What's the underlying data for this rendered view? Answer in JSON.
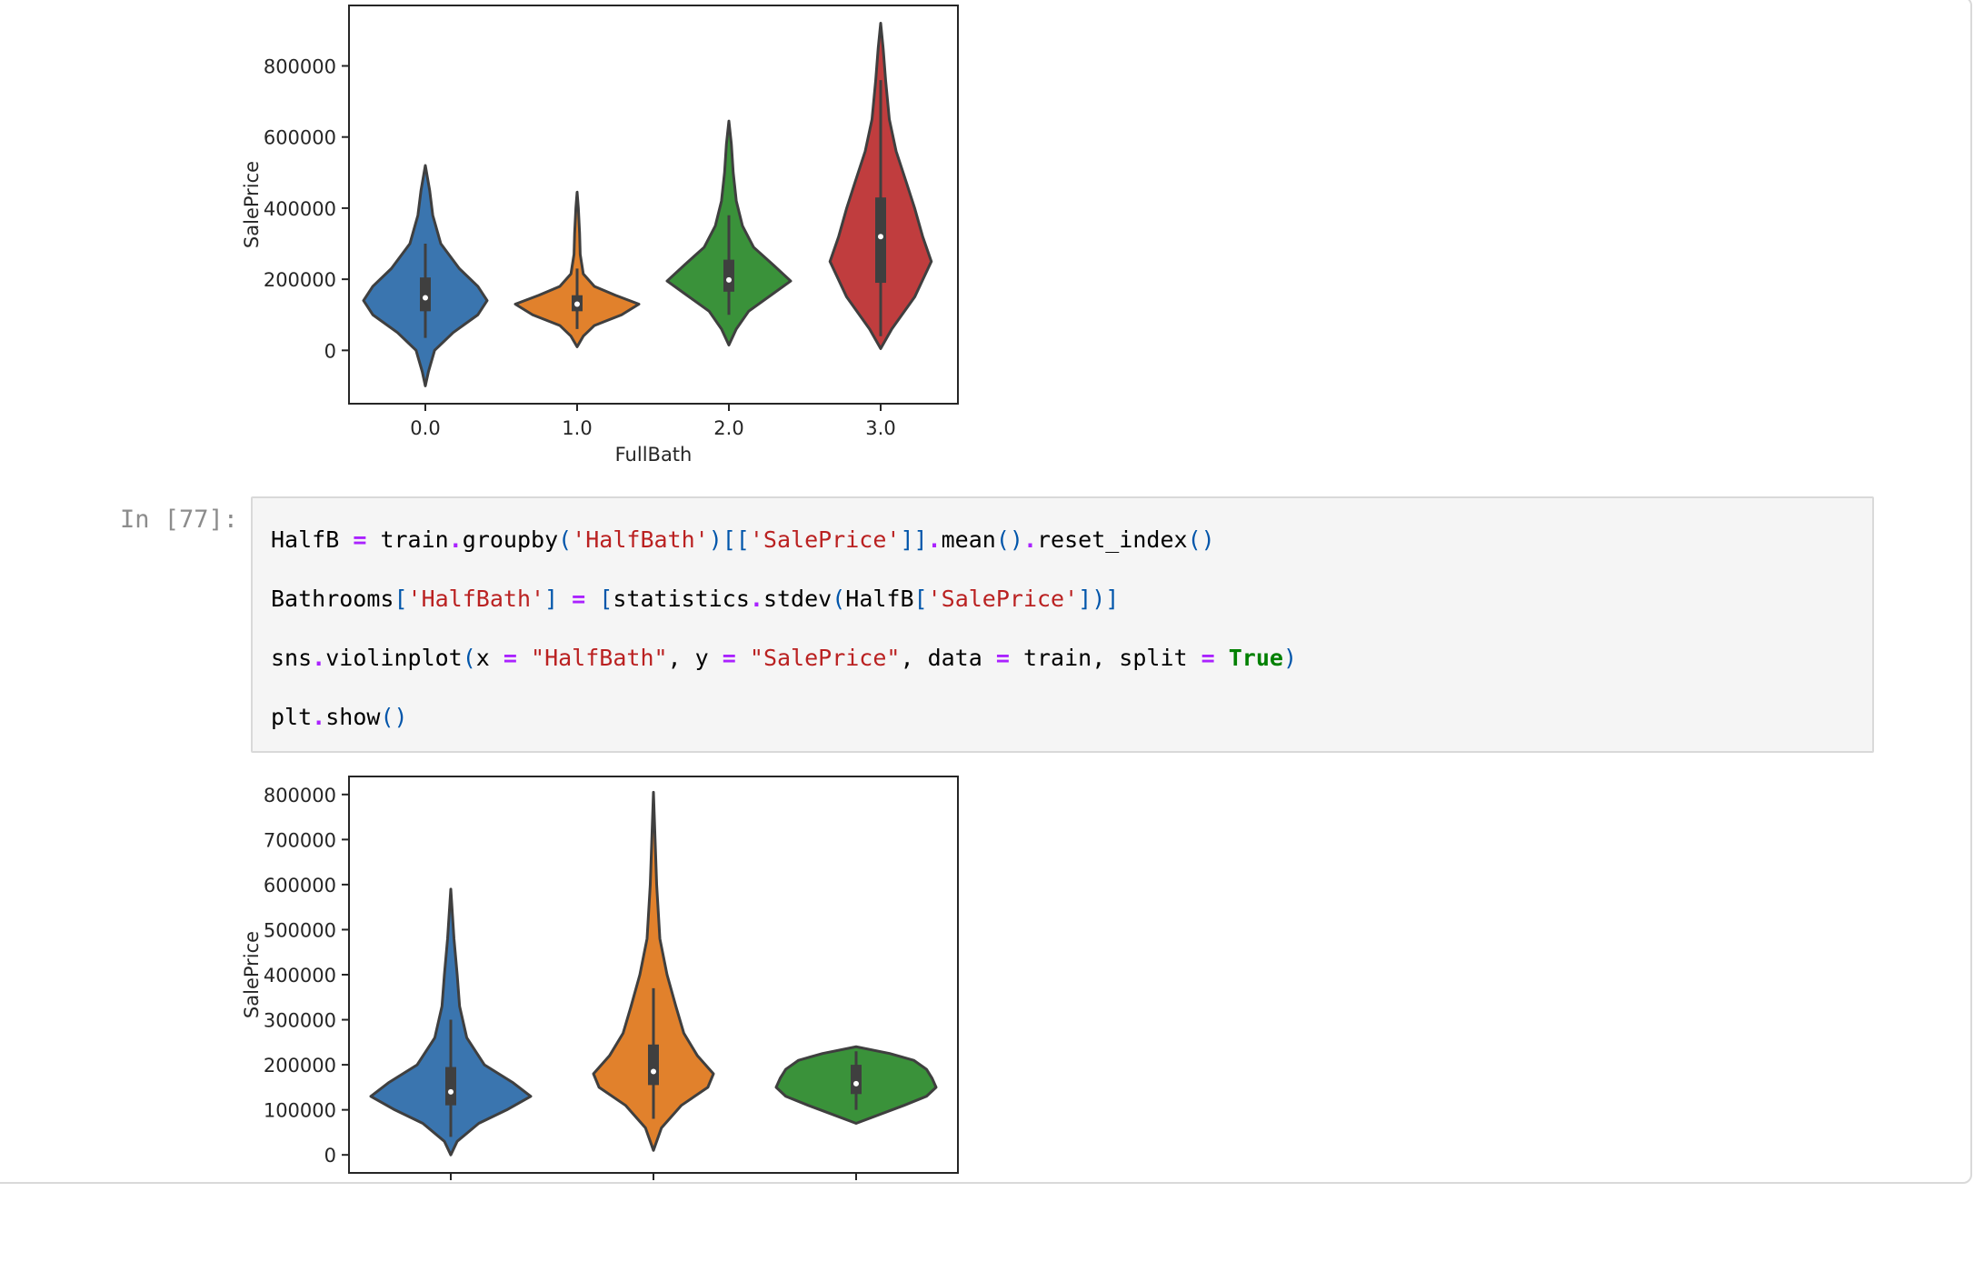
{
  "notebook": {
    "cell_prompt": "In [77]:",
    "code_lines": [
      [
        {
          "t": "HalfB",
          "c": "var"
        },
        {
          "t": " ",
          "c": "p"
        },
        {
          "t": "=",
          "c": "op"
        },
        {
          "t": " train",
          "c": "var"
        },
        {
          "t": ".",
          "c": "op"
        },
        {
          "t": "groupby",
          "c": "var"
        },
        {
          "t": "(",
          "c": "br"
        },
        {
          "t": "'HalfBath'",
          "c": "str"
        },
        {
          "t": ")[[",
          "c": "br"
        },
        {
          "t": "'SalePrice'",
          "c": "str"
        },
        {
          "t": "]]",
          "c": "br"
        },
        {
          "t": ".",
          "c": "op"
        },
        {
          "t": "mean",
          "c": "var"
        },
        {
          "t": "()",
          "c": "br"
        },
        {
          "t": ".",
          "c": "op"
        },
        {
          "t": "reset_index",
          "c": "var"
        },
        {
          "t": "()",
          "c": "br"
        }
      ],
      [
        {
          "t": "Bathrooms",
          "c": "var"
        },
        {
          "t": "[",
          "c": "br"
        },
        {
          "t": "'HalfBath'",
          "c": "str"
        },
        {
          "t": "]",
          "c": "br"
        },
        {
          "t": " ",
          "c": "p"
        },
        {
          "t": "=",
          "c": "op"
        },
        {
          "t": " ",
          "c": "p"
        },
        {
          "t": "[",
          "c": "br"
        },
        {
          "t": "statistics",
          "c": "var"
        },
        {
          "t": ".",
          "c": "op"
        },
        {
          "t": "stdev",
          "c": "var"
        },
        {
          "t": "(",
          "c": "br"
        },
        {
          "t": "HalfB",
          "c": "var"
        },
        {
          "t": "[",
          "c": "br"
        },
        {
          "t": "'SalePrice'",
          "c": "str"
        },
        {
          "t": "])]",
          "c": "br"
        }
      ],
      [
        {
          "t": "sns",
          "c": "var"
        },
        {
          "t": ".",
          "c": "op"
        },
        {
          "t": "violinplot",
          "c": "var"
        },
        {
          "t": "(",
          "c": "br"
        },
        {
          "t": "x ",
          "c": "var"
        },
        {
          "t": "=",
          "c": "op"
        },
        {
          "t": " ",
          "c": "p"
        },
        {
          "t": "\"HalfBath\"",
          "c": "str"
        },
        {
          "t": ", y ",
          "c": "var"
        },
        {
          "t": "=",
          "c": "op"
        },
        {
          "t": " ",
          "c": "p"
        },
        {
          "t": "\"SalePrice\"",
          "c": "str"
        },
        {
          "t": ", data ",
          "c": "var"
        },
        {
          "t": "=",
          "c": "op"
        },
        {
          "t": " train, split ",
          "c": "var"
        },
        {
          "t": "=",
          "c": "op"
        },
        {
          "t": " ",
          "c": "p"
        },
        {
          "t": "True",
          "c": "kw"
        },
        {
          "t": ")",
          "c": "br"
        }
      ],
      [
        {
          "t": "plt",
          "c": "var"
        },
        {
          "t": ".",
          "c": "op"
        },
        {
          "t": "show",
          "c": "var"
        },
        {
          "t": "()",
          "c": "br"
        }
      ]
    ]
  },
  "chart_data": [
    {
      "type": "violin",
      "xlabel": "FullBath",
      "ylabel": "SalePrice",
      "categories": [
        "0.0",
        "1.0",
        "2.0",
        "3.0"
      ],
      "colors": [
        "#3a75af",
        "#e1812c",
        "#3a923a",
        "#c03d3e"
      ],
      "yticks": [
        0,
        200000,
        400000,
        600000,
        800000
      ],
      "ylim": [
        -150000,
        970000
      ],
      "grid": false,
      "violins": [
        {
          "ymin": -100000,
          "ymax": 520000,
          "q1": 110000,
          "median": 148000,
          "q3": 205000,
          "whisker_low": 35000,
          "whisker_high": 300000,
          "profile": [
            [
              -100000,
              0
            ],
            [
              -60000,
              0.05
            ],
            [
              0,
              0.15
            ],
            [
              50000,
              0.45
            ],
            [
              100000,
              0.85
            ],
            [
              140000,
              1
            ],
            [
              180000,
              0.85
            ],
            [
              230000,
              0.55
            ],
            [
              300000,
              0.25
            ],
            [
              380000,
              0.12
            ],
            [
              450000,
              0.07
            ],
            [
              520000,
              0
            ]
          ]
        },
        {
          "ymin": 10000,
          "ymax": 445000,
          "q1": 110000,
          "median": 130000,
          "q3": 155000,
          "whisker_low": 60000,
          "whisker_high": 230000,
          "profile": [
            [
              10000,
              0
            ],
            [
              40000,
              0.1
            ],
            [
              70000,
              0.28
            ],
            [
              100000,
              0.72
            ],
            [
              130000,
              1
            ],
            [
              155000,
              0.62
            ],
            [
              180000,
              0.28
            ],
            [
              215000,
              0.1
            ],
            [
              270000,
              0.05
            ],
            [
              330000,
              0.04
            ],
            [
              400000,
              0.02
            ],
            [
              445000,
              0
            ]
          ]
        },
        {
          "ymin": 15000,
          "ymax": 645000,
          "q1": 165000,
          "median": 198000,
          "q3": 255000,
          "whisker_low": 100000,
          "whisker_high": 380000,
          "profile": [
            [
              15000,
              0
            ],
            [
              60000,
              0.12
            ],
            [
              110000,
              0.32
            ],
            [
              160000,
              0.72
            ],
            [
              195000,
              1
            ],
            [
              240000,
              0.72
            ],
            [
              290000,
              0.4
            ],
            [
              350000,
              0.22
            ],
            [
              420000,
              0.12
            ],
            [
              500000,
              0.07
            ],
            [
              580000,
              0.04
            ],
            [
              645000,
              0
            ]
          ]
        },
        {
          "ymin": 5000,
          "ymax": 920000,
          "q1": 190000,
          "median": 320000,
          "q3": 430000,
          "whisker_low": 40000,
          "whisker_high": 760000,
          "profile": [
            [
              5000,
              0
            ],
            [
              60000,
              0.18
            ],
            [
              150000,
              0.55
            ],
            [
              250000,
              0.82
            ],
            [
              320000,
              0.68
            ],
            [
              400000,
              0.55
            ],
            [
              470000,
              0.42
            ],
            [
              560000,
              0.25
            ],
            [
              650000,
              0.14
            ],
            [
              760000,
              0.08
            ],
            [
              850000,
              0.04
            ],
            [
              920000,
              0
            ]
          ]
        }
      ]
    },
    {
      "type": "violin",
      "xlabel": "",
      "ylabel": "SalePrice",
      "categories": [
        "",
        "",
        ""
      ],
      "colors": [
        "#3a75af",
        "#e1812c",
        "#3a923a"
      ],
      "yticks": [
        0,
        100000,
        200000,
        300000,
        400000,
        500000,
        600000,
        700000,
        800000
      ],
      "ylim": [
        -40000,
        840000
      ],
      "grid": false,
      "violins": [
        {
          "ymin": 0,
          "ymax": 590000,
          "q1": 110000,
          "median": 140000,
          "q3": 195000,
          "whisker_low": 40000,
          "whisker_high": 300000,
          "profile": [
            [
              0,
              0
            ],
            [
              30000,
              0.08
            ],
            [
              70000,
              0.35
            ],
            [
              100000,
              0.7
            ],
            [
              130000,
              1
            ],
            [
              160000,
              0.78
            ],
            [
              200000,
              0.42
            ],
            [
              260000,
              0.2
            ],
            [
              330000,
              0.11
            ],
            [
              400000,
              0.08
            ],
            [
              480000,
              0.04
            ],
            [
              590000,
              0
            ]
          ]
        },
        {
          "ymin": 10000,
          "ymax": 805000,
          "q1": 155000,
          "median": 185000,
          "q3": 245000,
          "whisker_low": 80000,
          "whisker_high": 370000,
          "profile": [
            [
              10000,
              0
            ],
            [
              60000,
              0.1
            ],
            [
              110000,
              0.35
            ],
            [
              150000,
              0.68
            ],
            [
              180000,
              0.75
            ],
            [
              220000,
              0.55
            ],
            [
              270000,
              0.38
            ],
            [
              330000,
              0.28
            ],
            [
              400000,
              0.17
            ],
            [
              480000,
              0.08
            ],
            [
              600000,
              0.04
            ],
            [
              805000,
              0
            ]
          ]
        },
        {
          "ymin": 70000,
          "ymax": 240000,
          "q1": 135000,
          "median": 158000,
          "q3": 200000,
          "whisker_low": 100000,
          "whisker_high": 230000,
          "profile": [
            [
              70000,
              0
            ],
            [
              90000,
              0.3
            ],
            [
              110000,
              0.6
            ],
            [
              130000,
              0.88
            ],
            [
              150000,
              1
            ],
            [
              170000,
              0.95
            ],
            [
              190000,
              0.88
            ],
            [
              210000,
              0.72
            ],
            [
              225000,
              0.42
            ],
            [
              240000,
              0
            ]
          ]
        }
      ]
    }
  ]
}
